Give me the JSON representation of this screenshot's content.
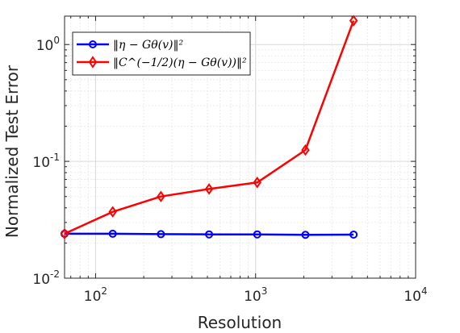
{
  "chart_data": {
    "type": "line",
    "xscale": "log",
    "yscale": "log",
    "xlim": [
      64,
      10000
    ],
    "ylim": [
      0.01,
      1.75
    ],
    "grid": true,
    "minor_grid": true,
    "xlabel": "Resolution",
    "ylabel": "Normalized Test Error",
    "x_ticks": [
      {
        "value": 100,
        "base": "10",
        "exp": "2"
      },
      {
        "value": 1000,
        "base": "10",
        "exp": "3"
      },
      {
        "value": 10000,
        "base": "10",
        "exp": "4"
      }
    ],
    "y_ticks": [
      {
        "value": 0.01,
        "label": "10",
        "exp": "-2"
      },
      {
        "value": 0.1,
        "label": "10",
        "exp": "-1"
      },
      {
        "value": 1,
        "label": "10",
        "exp": "0"
      }
    ],
    "legend_position": "top-left",
    "series": [
      {
        "name": "‖η − Gθ(v)‖²",
        "color": "#0000ff",
        "marker": "circle",
        "x": [
          64,
          128,
          256,
          512,
          1024,
          2048,
          4096
        ],
        "y": [
          0.024,
          0.024,
          0.0238,
          0.0237,
          0.0237,
          0.0235,
          0.0236
        ]
      },
      {
        "name": "‖C^(−1/2)(η − Gθ(v))‖²",
        "color": "#ff0000",
        "marker": "diamond",
        "x": [
          64,
          128,
          256,
          512,
          1024,
          2048,
          4096
        ],
        "y": [
          0.024,
          0.037,
          0.05,
          0.058,
          0.066,
          0.125,
          1.6
        ]
      }
    ]
  }
}
